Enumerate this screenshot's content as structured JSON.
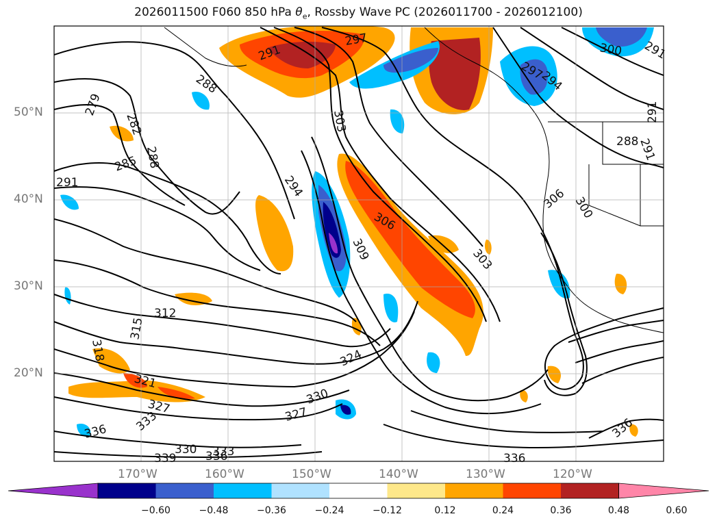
{
  "title": {
    "prefix": "2026011500 F060 850 hPa ",
    "var_symbol": "θ",
    "var_sub": "e",
    "suffix": ", Rossby Wave PC (2026011700 - 2026012100)"
  },
  "map": {
    "lat_labels": [
      "50°N",
      "40°N",
      "30°N",
      "20°N"
    ],
    "lon_labels": [
      "170°W",
      "160°W",
      "150°W",
      "140°W",
      "130°W",
      "120°W"
    ],
    "contour_labels": [
      "297",
      "291",
      "300",
      "291",
      "297",
      "294",
      "288",
      "279",
      "282",
      "303",
      "288",
      "285",
      "294",
      "291",
      "288",
      "291",
      "291",
      "306",
      "306",
      "300",
      "309",
      "303",
      "312",
      "318",
      "315",
      "324",
      "321",
      "327",
      "330",
      "327",
      "336",
      "333",
      "330",
      "333",
      "339",
      "336",
      "336",
      "336"
    ]
  },
  "colorbar": {
    "ticks": [
      "−0.60",
      "−0.48",
      "−0.36",
      "−0.24",
      "−0.12",
      "0.12",
      "0.24",
      "0.36",
      "0.48",
      "0.60"
    ],
    "colors": [
      "#9932cc",
      "#00008b",
      "#3a5fcd",
      "#00bfff",
      "#b0e2ff",
      "#ffffff",
      "#fee88a",
      "#ffa500",
      "#ff4500",
      "#b22222",
      "#ff85a8"
    ]
  }
}
